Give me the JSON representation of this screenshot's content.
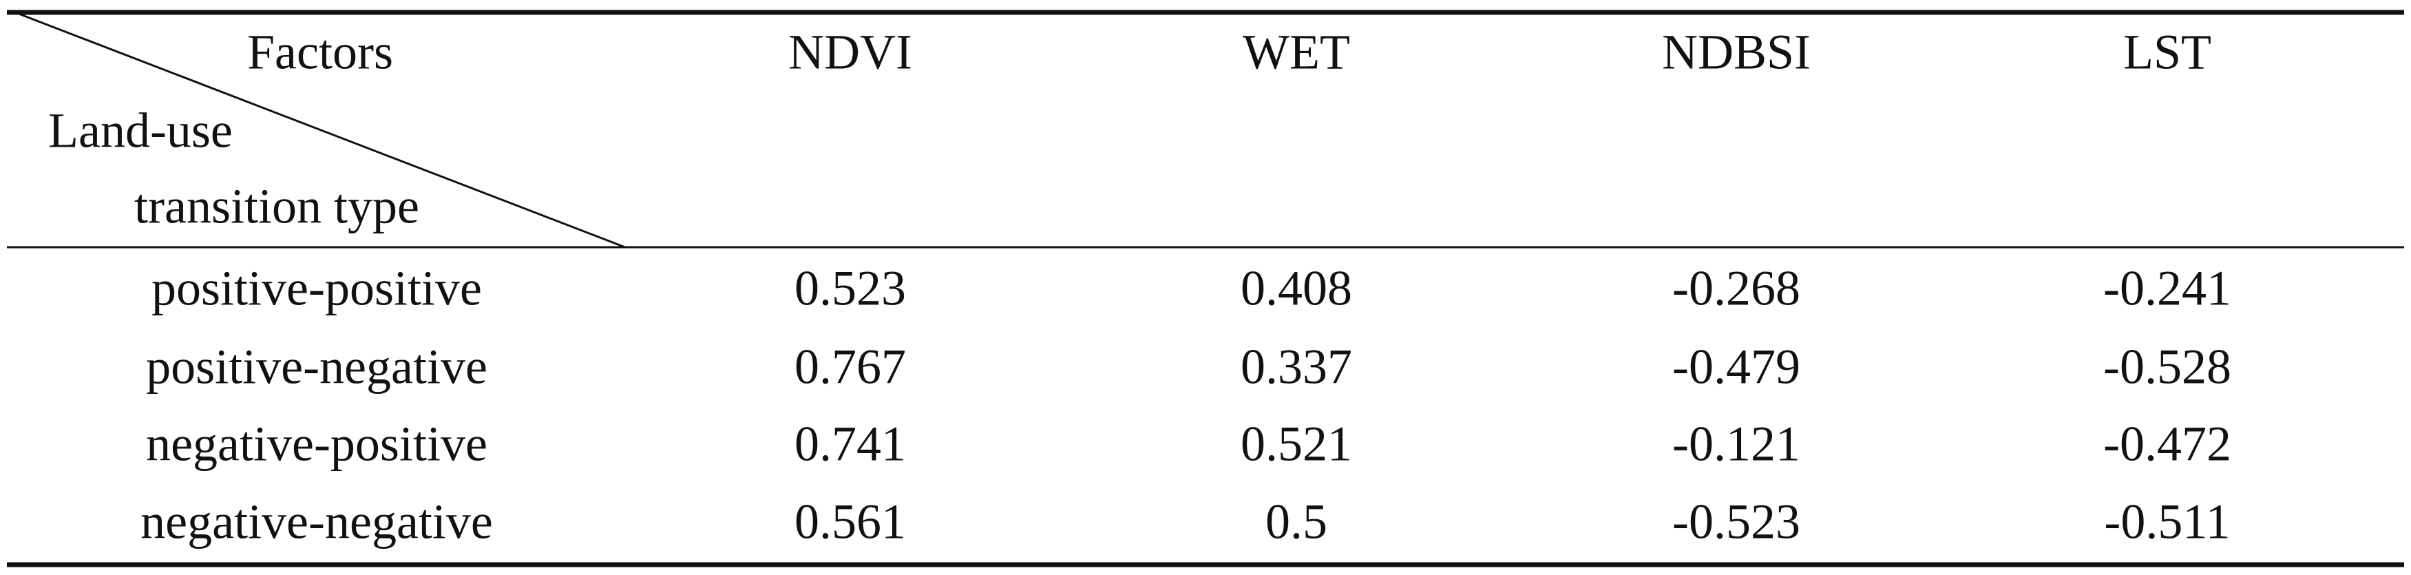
{
  "table": {
    "corner": {
      "column_header": "Factors",
      "row_header": [
        "Land-use",
        "transition type"
      ]
    },
    "columns": [
      "NDVI",
      "WET",
      "NDBSI",
      "LST"
    ],
    "rows": [
      {
        "label": "positive-positive",
        "values": [
          0.523,
          0.408,
          -0.268,
          -0.241
        ]
      },
      {
        "label": "positive-negative",
        "values": [
          0.767,
          0.337,
          -0.479,
          -0.528
        ]
      },
      {
        "label": "negative-positive",
        "values": [
          0.741,
          0.521,
          -0.121,
          -0.472
        ]
      },
      {
        "label": "negative-negative",
        "values": [
          0.561,
          0.5,
          -0.523,
          -0.511
        ]
      }
    ]
  }
}
